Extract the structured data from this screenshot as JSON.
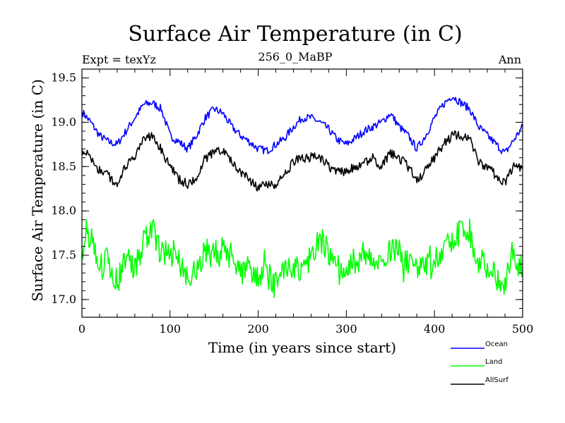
{
  "chart_data": {
    "type": "line",
    "title": "Surface Air Temperature (in C)",
    "header_left": "Expt = texYz",
    "header_center": "256_0_MaBP",
    "header_right": "Ann",
    "xlabel": "Time (in years since start)",
    "ylabel": "Surface Air Temperature (in C)",
    "xlim": [
      0,
      500
    ],
    "ylim": [
      16.8,
      19.6
    ],
    "xticks": [
      "0",
      "100",
      "200",
      "300",
      "400",
      "500"
    ],
    "yticks": [
      "17.0",
      "17.5",
      "18.0",
      "18.5",
      "19.0",
      "19.5"
    ],
    "grid": false,
    "legend_position": "bottom-right, outside plot",
    "series": [
      {
        "name": "Ocean",
        "color": "#0000ff",
        "x": [
          0,
          10,
          20,
          30,
          40,
          50,
          60,
          70,
          80,
          90,
          100,
          110,
          120,
          130,
          140,
          150,
          160,
          170,
          180,
          190,
          200,
          210,
          220,
          230,
          240,
          250,
          260,
          270,
          280,
          290,
          300,
          310,
          320,
          330,
          340,
          350,
          360,
          370,
          380,
          390,
          400,
          410,
          420,
          430,
          440,
          450,
          460,
          470,
          480,
          490,
          500
        ],
        "values": [
          19.12,
          19.0,
          18.85,
          18.78,
          18.75,
          18.9,
          19.05,
          19.2,
          19.22,
          19.15,
          18.85,
          18.78,
          18.7,
          18.85,
          19.05,
          19.15,
          19.1,
          18.95,
          18.85,
          18.78,
          18.7,
          18.68,
          18.75,
          18.82,
          18.95,
          19.05,
          19.05,
          19.0,
          18.92,
          18.8,
          18.75,
          18.82,
          18.9,
          18.95,
          19.0,
          19.1,
          18.95,
          18.85,
          18.7,
          18.85,
          19.05,
          19.2,
          19.3,
          19.22,
          19.15,
          18.95,
          18.85,
          18.75,
          18.65,
          18.8,
          18.95
        ]
      },
      {
        "name": "Land",
        "color": "#00ff00",
        "x": [
          0,
          10,
          20,
          30,
          40,
          50,
          60,
          70,
          80,
          90,
          100,
          110,
          120,
          130,
          140,
          150,
          160,
          170,
          180,
          190,
          200,
          210,
          220,
          230,
          240,
          250,
          260,
          270,
          280,
          290,
          300,
          310,
          320,
          330,
          340,
          350,
          360,
          370,
          380,
          390,
          400,
          410,
          420,
          430,
          440,
          450,
          460,
          470,
          480,
          490,
          500
        ],
        "values": [
          17.6,
          17.75,
          17.35,
          17.45,
          17.2,
          17.5,
          17.3,
          17.7,
          17.8,
          17.5,
          17.6,
          17.4,
          17.3,
          17.3,
          17.55,
          17.5,
          17.55,
          17.5,
          17.3,
          17.4,
          17.2,
          17.3,
          17.15,
          17.3,
          17.4,
          17.35,
          17.5,
          17.7,
          17.5,
          17.35,
          17.35,
          17.45,
          17.5,
          17.5,
          17.35,
          17.55,
          17.6,
          17.4,
          17.3,
          17.35,
          17.4,
          17.55,
          17.65,
          17.8,
          17.75,
          17.45,
          17.4,
          17.25,
          17.15,
          17.55,
          17.3
        ]
      },
      {
        "name": "AllSurf",
        "color": "#000000",
        "x": [
          0,
          10,
          20,
          30,
          40,
          50,
          60,
          70,
          80,
          90,
          100,
          110,
          120,
          130,
          140,
          150,
          160,
          170,
          180,
          190,
          200,
          210,
          220,
          230,
          240,
          250,
          260,
          270,
          280,
          290,
          300,
          310,
          320,
          330,
          340,
          350,
          360,
          370,
          380,
          390,
          400,
          410,
          420,
          430,
          440,
          450,
          460,
          470,
          480,
          490,
          500
        ],
        "values": [
          18.7,
          18.6,
          18.45,
          18.4,
          18.3,
          18.5,
          18.6,
          18.8,
          18.85,
          18.7,
          18.5,
          18.35,
          18.3,
          18.35,
          18.6,
          18.65,
          18.7,
          18.55,
          18.45,
          18.35,
          18.25,
          18.3,
          18.3,
          18.4,
          18.55,
          18.6,
          18.6,
          18.6,
          18.5,
          18.45,
          18.45,
          18.5,
          18.55,
          18.6,
          18.5,
          18.65,
          18.6,
          18.5,
          18.35,
          18.45,
          18.6,
          18.75,
          18.85,
          18.85,
          18.8,
          18.55,
          18.5,
          18.4,
          18.3,
          18.5,
          18.5
        ]
      }
    ]
  }
}
